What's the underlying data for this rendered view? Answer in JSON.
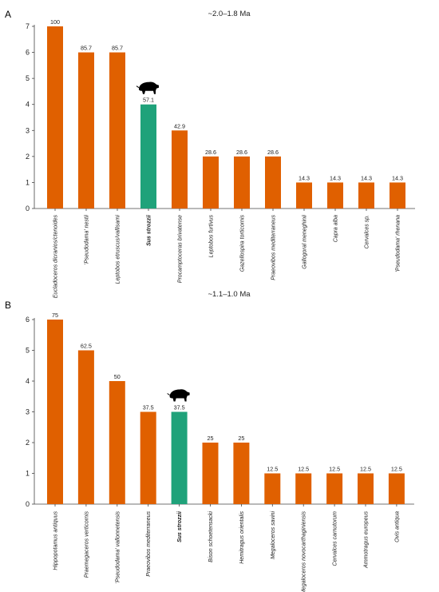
{
  "chart_data": [
    {
      "type": "bar",
      "panel": "A",
      "title": "~2.0–1.8 Ma",
      "xlabel": "",
      "ylabel": "",
      "ylim": [
        0,
        7
      ],
      "yticks": [
        0,
        1,
        2,
        3,
        4,
        5,
        6,
        7
      ],
      "grid": false,
      "legend": "none",
      "categories": [
        "Eucladoceros dicranios/ctenoides",
        "'Pseudodama' nestii",
        "Leptobos etruscus/vallisarni",
        "Sus strozzii",
        "Procamptoceras brivatense",
        "Leptobos furtivus",
        "Gazellospira torticornis",
        "Praeovibos mediterraneus",
        "Gallogoral meneghinii",
        "Capra alba",
        "Cervalces sp.",
        "'Pseudodama' rhenana"
      ],
      "values": [
        7,
        6,
        6,
        4,
        3,
        2,
        2,
        2,
        1,
        1,
        1,
        1
      ],
      "labels": [
        "100",
        "85.7",
        "85.7",
        "57.1",
        "42.9",
        "28.6",
        "28.6",
        "28.6",
        "14.3",
        "14.3",
        "14.3",
        "14.3"
      ],
      "highlight_index": 3,
      "highlight_icon": "boar-silhouette-icon",
      "colors": {
        "bar": "#E06000",
        "highlight": "#1FA27A"
      }
    },
    {
      "type": "bar",
      "panel": "B",
      "title": "~1.1–1.0 Ma",
      "xlabel": "",
      "ylabel": "",
      "ylim": [
        0,
        6
      ],
      "yticks": [
        0,
        1,
        2,
        3,
        4,
        5,
        6
      ],
      "grid": false,
      "legend": "none",
      "categories": [
        "Hippopotamus antiquus",
        "Praemegaceros verticornis",
        "'Pseudodama' vallonnetensis",
        "Praeovibos mediterraneus",
        "Sus strozzii",
        "Bison schoetensacki",
        "Hemitragus orientalis",
        "Megaloceros savini",
        "Megaloceros novocarthaginiensis",
        "Cervalces carnutorum",
        "Ammotragus europeus",
        "Ovis antiqua"
      ],
      "values": [
        6,
        5,
        4,
        3,
        3,
        2,
        2,
        1,
        1,
        1,
        1,
        1
      ],
      "labels": [
        "75",
        "62.5",
        "50",
        "37.5",
        "37.5",
        "25",
        "25",
        "12.5",
        "12.5",
        "12.5",
        "12.5",
        "12.5"
      ],
      "highlight_index": 4,
      "highlight_icon": "boar-silhouette-icon",
      "colors": {
        "bar": "#E06000",
        "highlight": "#1FA27A"
      }
    }
  ]
}
